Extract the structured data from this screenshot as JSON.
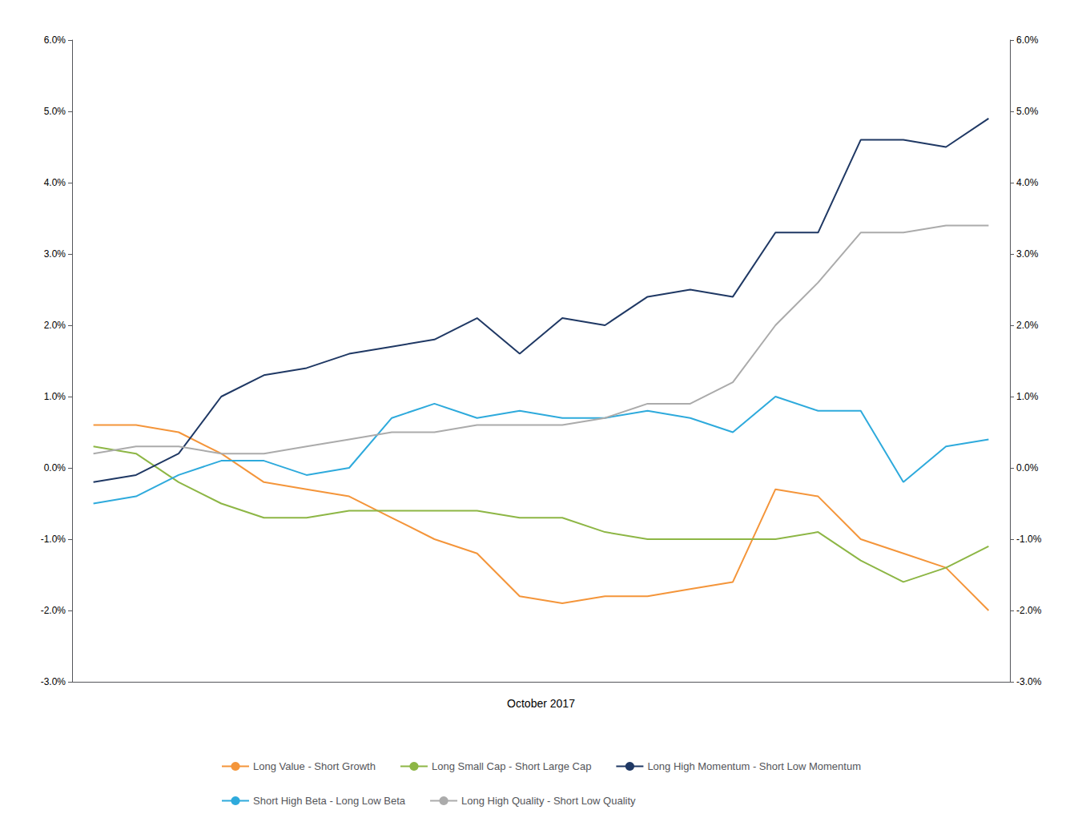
{
  "chart_data": {
    "type": "line",
    "xlabel": "October 2017",
    "categories": [
      null,
      null,
      null,
      null,
      null,
      null,
      null,
      null,
      null,
      null,
      null,
      null,
      null,
      null,
      null,
      null,
      null,
      null,
      null,
      null,
      null,
      null
    ],
    "ylim": [
      -0.03,
      0.06
    ],
    "yticks": [
      {
        "value": -0.03,
        "label": "-3.0%"
      },
      {
        "value": -0.02,
        "label": "-2.0%"
      },
      {
        "value": -0.01,
        "label": "-1.0%"
      },
      {
        "value": 0.0,
        "label": "0.0%"
      },
      {
        "value": 0.01,
        "label": "1.0%"
      },
      {
        "value": 0.02,
        "label": "2.0%"
      },
      {
        "value": 0.03,
        "label": "3.0%"
      },
      {
        "value": 0.04,
        "label": "4.0%"
      },
      {
        "value": 0.05,
        "label": "5.0%"
      },
      {
        "value": 0.06,
        "label": "6.0%"
      }
    ],
    "y2lim": [
      -0.03,
      0.06
    ],
    "y2ticks": [
      {
        "value": -0.03,
        "label": "-3.0%"
      },
      {
        "value": -0.02,
        "label": "-2.0%"
      },
      {
        "value": -0.01,
        "label": "-1.0%"
      },
      {
        "value": 0.0,
        "label": "0.0%"
      },
      {
        "value": 0.01,
        "label": "1.0%"
      },
      {
        "value": 0.02,
        "label": "2.0%"
      },
      {
        "value": 0.03,
        "label": "3.0%"
      },
      {
        "value": 0.04,
        "label": "4.0%"
      },
      {
        "value": 0.05,
        "label": "5.0%"
      },
      {
        "value": 0.06,
        "label": "6.0%"
      }
    ],
    "grid": false,
    "legend": "bottom",
    "tick_labels": "y",
    "series": [
      {
        "name": "Long Value - Short Growth",
        "color": "#F4953A",
        "values": [
          0.006,
          0.006,
          0.005,
          0.002,
          -0.002,
          -0.003,
          -0.004,
          -0.007,
          -0.01,
          -0.012,
          -0.018,
          -0.019,
          -0.018,
          -0.018,
          -0.017,
          -0.016,
          -0.003,
          -0.004,
          -0.01,
          -0.012,
          -0.014,
          -0.02
        ]
      },
      {
        "name": "Long Small Cap - Short Large Cap",
        "color": "#8DB645",
        "values": [
          0.003,
          0.002,
          -0.002,
          -0.005,
          -0.007,
          -0.007,
          -0.006,
          -0.006,
          -0.006,
          -0.006,
          -0.007,
          -0.007,
          -0.009,
          -0.01,
          -0.01,
          -0.01,
          -0.01,
          -0.009,
          -0.013,
          -0.016,
          -0.014,
          -0.011
        ]
      },
      {
        "name": "Long High Momentum - Short Low Momentum",
        "color": "#1F3864",
        "values": [
          -0.002,
          -0.001,
          0.002,
          0.01,
          0.013,
          0.014,
          0.016,
          0.017,
          0.018,
          0.021,
          0.016,
          0.021,
          0.02,
          0.024,
          0.025,
          0.024,
          0.033,
          0.033,
          0.046,
          0.046,
          0.045,
          0.049
        ]
      },
      {
        "name": "Short High Beta - Long Low Beta",
        "color": "#2EAADC",
        "values": [
          -0.005,
          -0.004,
          -0.001,
          0.001,
          0.001,
          -0.001,
          0.0,
          0.007,
          0.009,
          0.007,
          0.008,
          0.007,
          0.007,
          0.008,
          0.007,
          0.005,
          0.01,
          0.008,
          0.008,
          -0.002,
          0.003,
          0.004
        ]
      },
      {
        "name": "Long High Quality - Short Low Quality",
        "color": "#ABABAB",
        "values": [
          0.002,
          0.003,
          0.003,
          0.002,
          0.002,
          0.003,
          0.004,
          0.005,
          0.005,
          0.006,
          0.006,
          0.006,
          0.007,
          0.009,
          0.009,
          0.012,
          0.02,
          0.026,
          0.033,
          0.033,
          0.034,
          0.034
        ]
      }
    ]
  }
}
